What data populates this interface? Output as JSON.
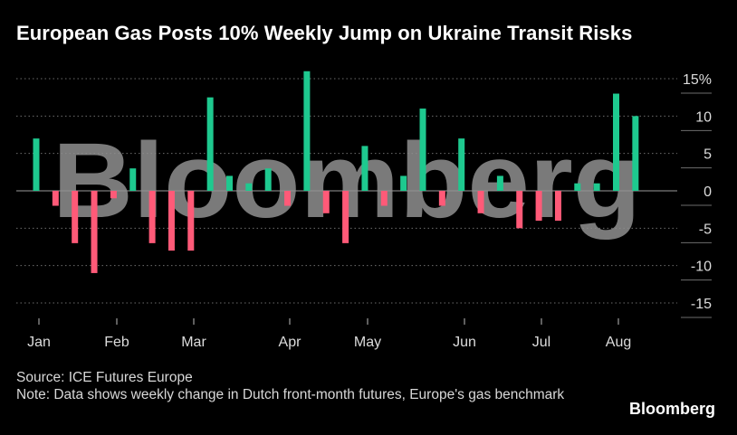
{
  "title": "European Gas Posts 10% Weekly Jump on Ukraine Transit Risks",
  "footer": {
    "source": "Source: ICE Futures Europe",
    "note": "Note: Data shows weekly change in Dutch front-month futures, Europe's gas benchmark"
  },
  "brand": "Bloomberg",
  "watermark": "Bloomberg",
  "colors": {
    "positive": "#1ec98f",
    "negative": "#ff5a78",
    "grid": "#6d6d6d",
    "zero": "#9a9a9a",
    "watermark": "#8f8f8f"
  },
  "chart_data": {
    "type": "bar",
    "ylim": [
      -15,
      15
    ],
    "y_ticks": [
      15,
      10,
      5,
      0,
      -5,
      -10,
      -15
    ],
    "y_tick_labels": [
      "15%",
      "10",
      "5",
      "0",
      "-5",
      "-10",
      "-15"
    ],
    "x_tick_labels": [
      "Jan",
      "Feb",
      "Mar",
      "Apr",
      "May",
      "Jun",
      "Jul",
      "Aug"
    ],
    "series": [
      {
        "values": [
          7,
          -2,
          -7,
          -11,
          -1,
          3,
          -7,
          -8,
          -8,
          12.5,
          2,
          1,
          3,
          -2,
          16,
          -3,
          -7,
          6,
          -2,
          2,
          11,
          -2,
          7,
          -3,
          2,
          -5,
          -4,
          -4,
          1,
          1,
          13,
          10
        ]
      }
    ]
  }
}
